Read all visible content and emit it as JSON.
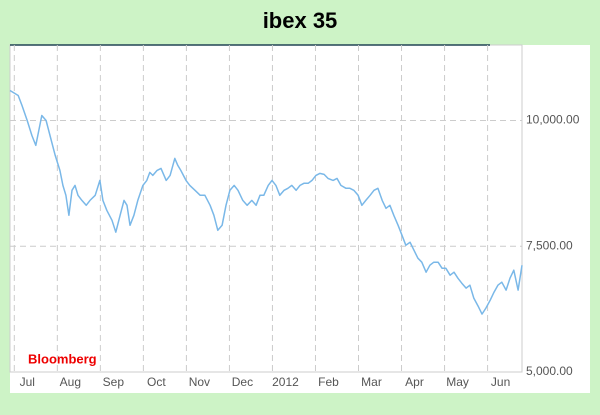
{
  "chart_data": {
    "type": "line",
    "title": "ibex 35",
    "annotation": "Bloomberg",
    "x": [
      -0.1,
      0.09,
      0.18,
      0.3,
      0.41,
      0.5,
      0.57,
      0.64,
      0.74,
      0.83,
      0.95,
      1.06,
      1.13,
      1.2,
      1.27,
      1.34,
      1.41,
      1.48,
      1.57,
      1.67,
      1.76,
      1.88,
      1.99,
      2.06,
      2.15,
      2.27,
      2.36,
      2.46,
      2.55,
      2.62,
      2.69,
      2.78,
      2.87,
      2.99,
      3.08,
      3.15,
      3.22,
      3.32,
      3.41,
      3.53,
      3.62,
      3.73,
      3.8,
      3.87,
      3.99,
      4.08,
      4.2,
      4.32,
      4.43,
      4.55,
      4.64,
      4.73,
      4.83,
      4.92,
      5.01,
      5.11,
      5.2,
      5.31,
      5.41,
      5.52,
      5.62,
      5.71,
      5.8,
      5.9,
      5.99,
      6.08,
      6.17,
      6.27,
      6.36,
      6.45,
      6.55,
      6.64,
      6.73,
      6.83,
      6.92,
      7.01,
      7.1,
      7.2,
      7.29,
      7.41,
      7.5,
      7.59,
      7.71,
      7.8,
      7.89,
      7.99,
      8.08,
      8.17,
      8.27,
      8.36,
      8.45,
      8.55,
      8.64,
      8.73,
      8.82,
      8.92,
      9.01,
      9.1,
      9.2,
      9.29,
      9.38,
      9.47,
      9.57,
      9.66,
      9.75,
      9.85,
      9.94,
      10.03,
      10.13,
      10.22,
      10.31,
      10.4,
      10.5,
      10.59,
      10.68,
      10.78,
      10.87,
      10.96,
      11.06,
      11.15,
      11.24,
      11.33,
      11.43,
      11.52,
      11.61,
      11.71,
      11.8
    ],
    "series": [
      {
        "name": "ibex 35",
        "color": "#7ab8e8",
        "values": [
          10595,
          10496,
          10297,
          10000,
          9702,
          9504,
          9801,
          10099,
          10000,
          9702,
          9305,
          9008,
          8710,
          8512,
          8115,
          8611,
          8710,
          8512,
          8412,
          8313,
          8412,
          8512,
          8809,
          8412,
          8214,
          8016,
          7778,
          8115,
          8412,
          8313,
          7916,
          8115,
          8412,
          8710,
          8809,
          8968,
          8908,
          9008,
          9047,
          8809,
          8908,
          9246,
          9107,
          9008,
          8809,
          8710,
          8611,
          8512,
          8512,
          8313,
          8115,
          7817,
          7916,
          8313,
          8611,
          8710,
          8611,
          8412,
          8313,
          8412,
          8313,
          8512,
          8512,
          8710,
          8809,
          8710,
          8512,
          8611,
          8651,
          8710,
          8611,
          8710,
          8750,
          8750,
          8809,
          8908,
          8948,
          8928,
          8849,
          8809,
          8849,
          8710,
          8651,
          8651,
          8611,
          8512,
          8313,
          8412,
          8512,
          8611,
          8651,
          8412,
          8254,
          8313,
          8115,
          7916,
          7718,
          7520,
          7579,
          7420,
          7262,
          7182,
          6984,
          7123,
          7182,
          7182,
          7063,
          7063,
          6924,
          6984,
          6865,
          6766,
          6667,
          6726,
          6468,
          6309,
          6151,
          6270,
          6428,
          6587,
          6726,
          6786,
          6627,
          6865,
          7024,
          6627,
          7123
        ]
      }
    ],
    "xlim": [
      -0.1,
      11.8
    ],
    "xticks": [
      {
        "value": 0,
        "label": "Jul"
      },
      {
        "value": 1,
        "label": "Aug"
      },
      {
        "value": 2,
        "label": "Sep"
      },
      {
        "value": 3,
        "label": "Oct"
      },
      {
        "value": 4,
        "label": "Nov"
      },
      {
        "value": 5,
        "label": "Dec"
      },
      {
        "value": 6,
        "label": "2012"
      },
      {
        "value": 7,
        "label": "Feb"
      },
      {
        "value": 8,
        "label": "Mar"
      },
      {
        "value": 9,
        "label": "Apr"
      },
      {
        "value": 10,
        "label": "May"
      },
      {
        "value": 11,
        "label": "Jun"
      }
    ],
    "ylim": [
      5000,
      11500
    ],
    "yticks": [
      {
        "value": 5000,
        "label": "5,000.00"
      },
      {
        "value": 7500,
        "label": "7,500.00"
      },
      {
        "value": 10000,
        "label": "10,000.00"
      }
    ],
    "grid": true
  }
}
